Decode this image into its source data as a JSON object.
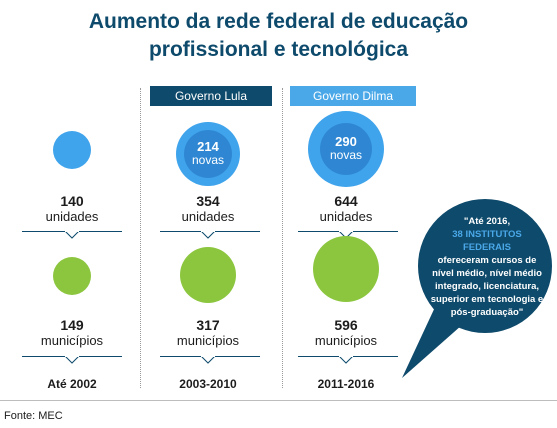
{
  "title": {
    "line1": "Aumento da rede federal de educação",
    "line2": "profissional e tecnológica"
  },
  "governments": [
    {
      "label": "Governo Lula",
      "color": "#0e4a6b"
    },
    {
      "label": "Governo Dilma",
      "color": "#4aa8e8"
    }
  ],
  "columns": [
    {
      "period": "Até 2002",
      "units": {
        "value": "140",
        "label": "unidades"
      },
      "municipalities": {
        "value": "149",
        "label": "municípios"
      }
    },
    {
      "period": "2003-2010",
      "new_units": {
        "value": "214",
        "label": "novas"
      },
      "units": {
        "value": "354",
        "label": "unidades"
      },
      "municipalities": {
        "value": "317",
        "label": "municípios"
      }
    },
    {
      "period": "2011-2016",
      "new_units": {
        "value": "290",
        "label": "novas"
      },
      "units": {
        "value": "644",
        "label": "unidades"
      },
      "municipalities": {
        "value": "596",
        "label": "municípios"
      }
    }
  ],
  "quote": {
    "part1": "\"Até 2016,",
    "highlight": "38 INSTITUTOS FEDERAIS",
    "part2": "ofereceram cursos de nível médio, nível médio integrado, licenciatura, superior em tecnologia e pós-graduação\""
  },
  "source": "Fonte: MEC",
  "colors": {
    "title": "#0e4a6b",
    "units_circle": "#3fa4ec",
    "new_units_circle": "#2f87d3",
    "municipalities_circle": "#8cc63f",
    "bubble": "#0e4a6b"
  }
}
